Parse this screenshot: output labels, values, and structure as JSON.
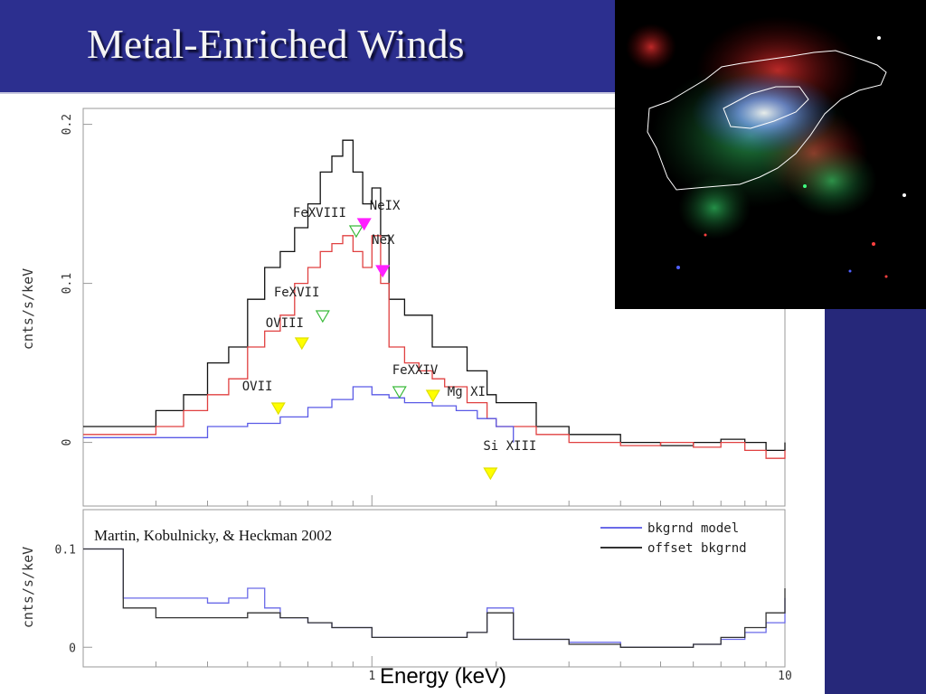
{
  "slide": {
    "title": "Metal-Enriched Winds",
    "colors": {
      "background": "#2b2c86",
      "title_bar": "#2c2f8f",
      "title_text": "#f4f4f4"
    }
  },
  "image": {
    "description_icon": "galaxy-xray-composite-icon",
    "colors": {
      "red": "#d43030",
      "green": "#20a040",
      "blue": "#5060ff",
      "contours": "#ffffff"
    }
  },
  "chart_data": [
    {
      "type": "line",
      "panel": "top",
      "ylabel": "cnts/s/keV",
      "x_scale": "log",
      "xlim": [
        0.2,
        10
      ],
      "ylim": [
        -0.04,
        0.21
      ],
      "yticks": [
        0,
        0.1,
        0.2
      ],
      "ytick_labels": [
        "0",
        "0.1",
        "0.2"
      ],
      "series": [
        {
          "color": "#111111",
          "x": [
            0.2,
            0.25,
            0.3,
            0.35,
            0.4,
            0.45,
            0.5,
            0.55,
            0.6,
            0.65,
            0.7,
            0.75,
            0.8,
            0.85,
            0.9,
            0.95,
            1.0,
            1.05,
            1.1,
            1.2,
            1.3,
            1.4,
            1.5,
            1.7,
            1.9,
            2.0,
            2.5,
            3,
            4,
            5,
            6,
            7,
            8,
            9,
            10
          ],
          "y": [
            0.01,
            0.01,
            0.02,
            0.03,
            0.05,
            0.06,
            0.09,
            0.11,
            0.12,
            0.135,
            0.15,
            0.17,
            0.18,
            0.19,
            0.17,
            0.15,
            0.16,
            0.13,
            0.09,
            0.08,
            0.08,
            0.06,
            0.06,
            0.045,
            0.03,
            0.025,
            0.01,
            0.005,
            0.0,
            -0.002,
            0.0,
            0.002,
            0.0,
            -0.005,
            0.0
          ]
        },
        {
          "color": "#e04040",
          "x": [
            0.2,
            0.25,
            0.3,
            0.35,
            0.4,
            0.45,
            0.5,
            0.55,
            0.6,
            0.65,
            0.7,
            0.75,
            0.8,
            0.85,
            0.9,
            0.95,
            1.0,
            1.05,
            1.1,
            1.2,
            1.3,
            1.4,
            1.5,
            1.7,
            1.9,
            2.0,
            2.5,
            3,
            4,
            5,
            6,
            7,
            8,
            9,
            10
          ],
          "y": [
            0.005,
            0.005,
            0.01,
            0.02,
            0.03,
            0.04,
            0.06,
            0.07,
            0.08,
            0.1,
            0.11,
            0.12,
            0.125,
            0.13,
            0.12,
            0.11,
            0.13,
            0.1,
            0.06,
            0.05,
            0.045,
            0.04,
            0.035,
            0.025,
            0.015,
            0.01,
            0.005,
            0.0,
            -0.002,
            0.0,
            -0.003,
            0.0,
            -0.005,
            -0.01,
            -0.005
          ]
        },
        {
          "color": "#5a5ae6",
          "x": [
            0.2,
            0.3,
            0.4,
            0.5,
            0.6,
            0.7,
            0.8,
            0.9,
            1.0,
            1.1,
            1.2,
            1.4,
            1.6,
            1.8,
            2.0,
            2.2
          ],
          "y": [
            0.003,
            0.003,
            0.01,
            0.012,
            0.016,
            0.022,
            0.027,
            0.035,
            0.03,
            0.028,
            0.025,
            0.023,
            0.02,
            0.015,
            0.01,
            0.0
          ]
        }
      ],
      "annotations": [
        {
          "text": "FeXVIII",
          "x": 0.88,
          "marker": "open-green"
        },
        {
          "text": "NeIX",
          "x": 0.92,
          "marker": "filled-magenta"
        },
        {
          "text": "NeX",
          "x": 1.02,
          "marker": "filled-magenta"
        },
        {
          "text": "FeXVII",
          "x": 0.73,
          "marker": "open-green"
        },
        {
          "text": "OVIII",
          "x": 0.65,
          "marker": "filled-yellow"
        },
        {
          "text": "OVII",
          "x": 0.57,
          "marker": "filled-yellow"
        },
        {
          "text": "FeXXIV",
          "x": 1.12,
          "marker": "open-green"
        },
        {
          "text": "Mg  XI",
          "x": 1.35,
          "marker": "filled-yellow"
        },
        {
          "text": "Si  XIII",
          "x": 1.86,
          "marker": "filled-yellow"
        }
      ]
    },
    {
      "type": "line",
      "panel": "bottom",
      "ylabel": "cnts/s/keV",
      "xlabel": "Energy (keV)",
      "x_scale": "log",
      "xlim": [
        0.2,
        10
      ],
      "ylim": [
        -0.02,
        0.14
      ],
      "yticks": [
        0,
        0.1
      ],
      "ytick_labels": [
        "0",
        "0.1"
      ],
      "xtick_labels": [
        "1",
        "10"
      ],
      "legend": [
        {
          "name": "bkgrnd  model",
          "color": "#6a6ae8"
        },
        {
          "name": "offset  bkgrnd",
          "color": "#333333"
        }
      ],
      "citation": "Martin, Kobulnicky, & Heckman 2002",
      "series": [
        {
          "name": "bkgrnd  model",
          "color": "#6a6ae8",
          "x": [
            0.2,
            0.25,
            0.3,
            0.35,
            0.4,
            0.45,
            0.5,
            0.55,
            0.6,
            0.7,
            0.8,
            1.0,
            1.5,
            1.7,
            1.9,
            2.2,
            3,
            4,
            5,
            6,
            7,
            8,
            9,
            10
          ],
          "y": [
            0.1,
            0.05,
            0.05,
            0.05,
            0.045,
            0.05,
            0.06,
            0.04,
            0.03,
            0.025,
            0.02,
            0.01,
            0.01,
            0.015,
            0.04,
            0.008,
            0.005,
            0.0,
            0.0,
            0.003,
            0.008,
            0.015,
            0.025,
            0.05
          ]
        },
        {
          "name": "offset  bkgrnd",
          "color": "#333333",
          "x": [
            0.2,
            0.25,
            0.3,
            0.35,
            0.4,
            0.5,
            0.6,
            0.7,
            0.8,
            1.0,
            1.5,
            1.7,
            1.9,
            2.2,
            3,
            4,
            5,
            6,
            7,
            8,
            9,
            10
          ],
          "y": [
            0.1,
            0.04,
            0.03,
            0.03,
            0.03,
            0.035,
            0.03,
            0.025,
            0.02,
            0.01,
            0.01,
            0.015,
            0.035,
            0.008,
            0.003,
            0.0,
            0.0,
            0.003,
            0.01,
            0.02,
            0.035,
            0.06
          ]
        }
      ]
    }
  ]
}
